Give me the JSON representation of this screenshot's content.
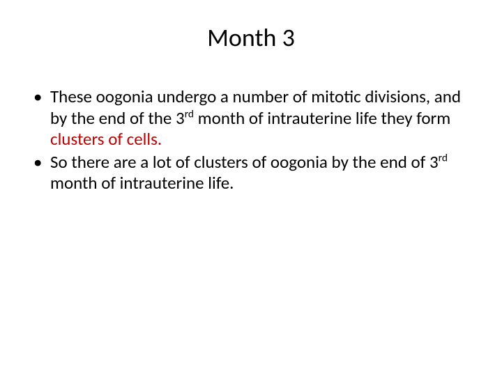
{
  "slide": {
    "title": "Month 3",
    "bullets": [
      {
        "before": "These oogonia undergo a number of mitotic divisions, and by the end of the 3",
        "sup1": "rd",
        "mid1": " month of intrauterine life they form ",
        "highlight": "clusters of cells.",
        "after": ""
      },
      {
        "before": "So there are a lot of clusters of oogonia by the end of 3",
        "sup1": "rd",
        "mid1": " month of intrauterine life.",
        "highlight": "",
        "after": ""
      }
    ],
    "colors": {
      "background": "#ffffff",
      "text": "#000000",
      "highlight": "#c00000"
    },
    "fonts": {
      "title_size_pt": 36,
      "body_size_pt": 25,
      "family": "Calibri"
    }
  }
}
